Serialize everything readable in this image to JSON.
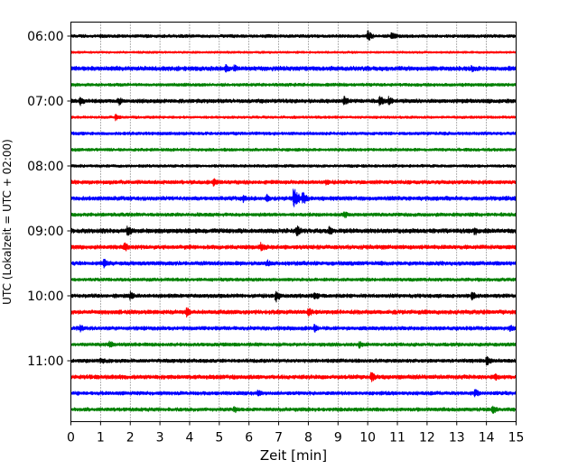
{
  "chart_data": {
    "type": "line",
    "chart_kind": "helicorder",
    "title": "",
    "xlabel": "Zeit  [min]",
    "ylabel": "UTC (Lokalzeit = UTC + 02:00)",
    "xlim": [
      0,
      15
    ],
    "x_ticks": [
      0,
      1,
      2,
      3,
      4,
      5,
      6,
      7,
      8,
      9,
      10,
      11,
      12,
      13,
      14,
      15
    ],
    "x_tick_labels": [
      "0",
      "1",
      "2",
      "3",
      "4",
      "5",
      "6",
      "7",
      "8",
      "9",
      "10",
      "11",
      "12",
      "13",
      "14",
      "15"
    ],
    "vertical_grid": true,
    "grid_style": "dotted",
    "y_tick_labels": [
      "06:00",
      "07:00",
      "08:00",
      "09:00",
      "10:00",
      "11:00"
    ],
    "traces_per_hour": 4,
    "minutes_per_trace": 15,
    "trace_colors": [
      "#000000",
      "#ff0000",
      "#0000ff",
      "#008000"
    ],
    "series": [
      {
        "start": "06:00",
        "color": "#000000",
        "noise": 2.0,
        "events": [
          {
            "t": 10.0,
            "amp": 7
          },
          {
            "t": 10.8,
            "amp": 6
          }
        ]
      },
      {
        "start": "06:15",
        "color": "#ff0000",
        "noise": 1.4,
        "events": []
      },
      {
        "start": "06:30",
        "color": "#0000ff",
        "noise": 2.8,
        "events": [
          {
            "t": 5.2,
            "amp": 6
          },
          {
            "t": 5.5,
            "amp": 5
          },
          {
            "t": 13.5,
            "amp": 5
          }
        ]
      },
      {
        "start": "06:45",
        "color": "#008000",
        "noise": 2.0,
        "events": []
      },
      {
        "start": "07:00",
        "color": "#000000",
        "noise": 2.5,
        "events": [
          {
            "t": 0.3,
            "amp": 7
          },
          {
            "t": 1.6,
            "amp": 6
          },
          {
            "t": 9.2,
            "amp": 6
          },
          {
            "t": 10.4,
            "amp": 7
          },
          {
            "t": 10.7,
            "amp": 6
          }
        ]
      },
      {
        "start": "07:15",
        "color": "#ff0000",
        "noise": 1.6,
        "events": [
          {
            "t": 1.5,
            "amp": 4
          }
        ]
      },
      {
        "start": "07:30",
        "color": "#0000ff",
        "noise": 2.0,
        "events": []
      },
      {
        "start": "07:45",
        "color": "#008000",
        "noise": 1.9,
        "events": []
      },
      {
        "start": "08:00",
        "color": "#000000",
        "noise": 1.8,
        "events": []
      },
      {
        "start": "08:15",
        "color": "#ff0000",
        "noise": 2.4,
        "events": [
          {
            "t": 4.8,
            "amp": 5
          },
          {
            "t": 8.6,
            "amp": 4
          }
        ]
      },
      {
        "start": "08:30",
        "color": "#0000ff",
        "noise": 2.6,
        "events": [
          {
            "t": 5.8,
            "amp": 5
          },
          {
            "t": 6.6,
            "amp": 5
          },
          {
            "t": 7.5,
            "amp": 14
          },
          {
            "t": 7.8,
            "amp": 9
          }
        ]
      },
      {
        "start": "08:45",
        "color": "#008000",
        "noise": 2.2,
        "events": [
          {
            "t": 9.2,
            "amp": 5
          }
        ]
      },
      {
        "start": "09:00",
        "color": "#000000",
        "noise": 2.8,
        "events": [
          {
            "t": 1.9,
            "amp": 7
          },
          {
            "t": 7.6,
            "amp": 7
          },
          {
            "t": 8.7,
            "amp": 6
          },
          {
            "t": 13.6,
            "amp": 6
          }
        ]
      },
      {
        "start": "09:15",
        "color": "#ff0000",
        "noise": 2.6,
        "events": [
          {
            "t": 1.8,
            "amp": 6
          },
          {
            "t": 6.4,
            "amp": 6
          }
        ]
      },
      {
        "start": "09:30",
        "color": "#0000ff",
        "noise": 2.5,
        "events": [
          {
            "t": 1.1,
            "amp": 6
          },
          {
            "t": 6.6,
            "amp": 5
          }
        ]
      },
      {
        "start": "09:45",
        "color": "#008000",
        "noise": 2.1,
        "events": []
      },
      {
        "start": "10:00",
        "color": "#000000",
        "noise": 2.4,
        "events": [
          {
            "t": 2.0,
            "amp": 6
          },
          {
            "t": 6.9,
            "amp": 8
          },
          {
            "t": 8.2,
            "amp": 6
          },
          {
            "t": 13.5,
            "amp": 6
          }
        ]
      },
      {
        "start": "10:15",
        "color": "#ff0000",
        "noise": 2.6,
        "events": [
          {
            "t": 3.9,
            "amp": 6
          },
          {
            "t": 8.0,
            "amp": 6
          }
        ]
      },
      {
        "start": "10:30",
        "color": "#0000ff",
        "noise": 2.4,
        "events": [
          {
            "t": 0.3,
            "amp": 5
          },
          {
            "t": 8.2,
            "amp": 5
          },
          {
            "t": 14.8,
            "amp": 5
          }
        ]
      },
      {
        "start": "10:45",
        "color": "#008000",
        "noise": 2.2,
        "events": [
          {
            "t": 1.3,
            "amp": 5
          },
          {
            "t": 9.7,
            "amp": 5
          }
        ]
      },
      {
        "start": "11:00",
        "color": "#000000",
        "noise": 2.3,
        "events": [
          {
            "t": 1.0,
            "amp": 5
          },
          {
            "t": 14.0,
            "amp": 6
          }
        ]
      },
      {
        "start": "11:15",
        "color": "#ff0000",
        "noise": 2.6,
        "events": [
          {
            "t": 10.1,
            "amp": 7
          },
          {
            "t": 14.3,
            "amp": 5
          }
        ]
      },
      {
        "start": "11:30",
        "color": "#0000ff",
        "noise": 2.3,
        "events": [
          {
            "t": 6.3,
            "amp": 5
          },
          {
            "t": 13.6,
            "amp": 6
          }
        ]
      },
      {
        "start": "11:45",
        "color": "#008000",
        "noise": 2.3,
        "events": [
          {
            "t": 5.5,
            "amp": 5
          },
          {
            "t": 14.2,
            "amp": 6
          }
        ]
      }
    ]
  }
}
